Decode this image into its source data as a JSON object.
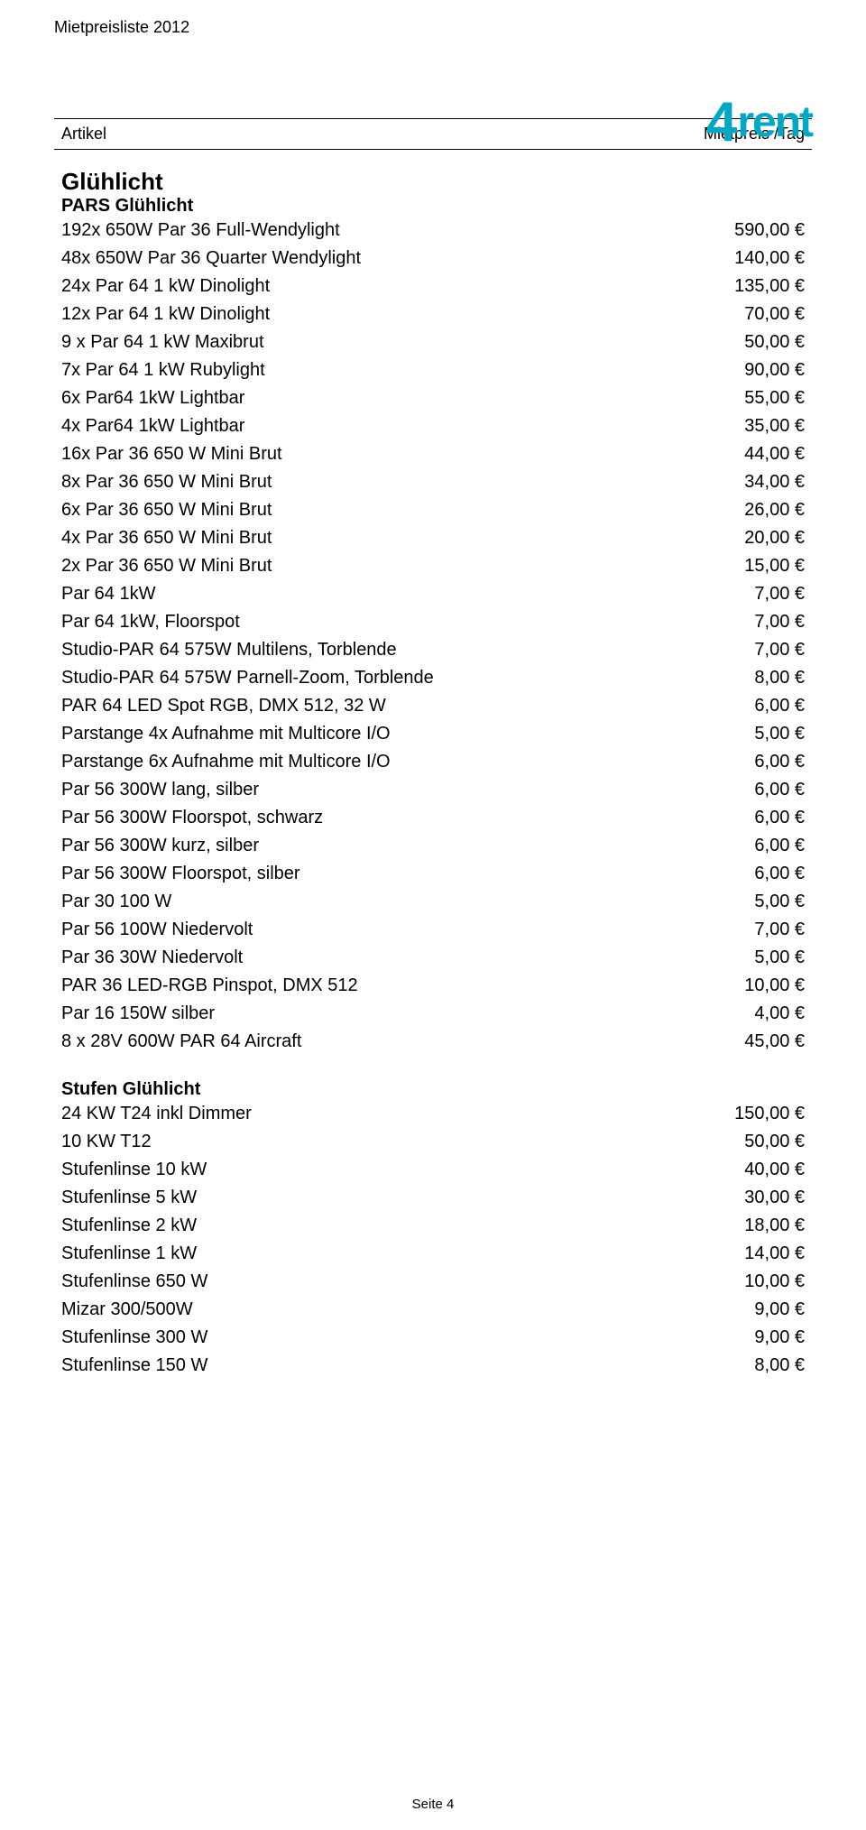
{
  "header": {
    "title": "Mietpreisliste 2012",
    "article_label": "Artikel",
    "price_label": "Mietpreis /Tag"
  },
  "logo": {
    "prefix": "4",
    "suffix": "rent",
    "color": "#00a8c6"
  },
  "currency": "€",
  "section1": {
    "title": "Glühlicht",
    "sub1": {
      "title": "PARS Glühlicht",
      "items": [
        {
          "label": "192x 650W Par 36 Full-Wendylight",
          "price": "590,00"
        },
        {
          "label": "48x 650W Par 36 Quarter Wendylight",
          "price": "140,00"
        },
        {
          "label": "24x Par 64 1 kW Dinolight",
          "price": "135,00"
        },
        {
          "label": "12x Par 64 1 kW Dinolight",
          "price": "70,00"
        },
        {
          "label": "9 x Par 64 1 kW Maxibrut",
          "price": "50,00"
        },
        {
          "label": "7x Par 64 1 kW Rubylight",
          "price": "90,00"
        },
        {
          "label": "6x Par64 1kW Lightbar",
          "price": "55,00"
        },
        {
          "label": "4x Par64 1kW Lightbar",
          "price": "35,00"
        },
        {
          "label": "16x Par 36 650 W Mini Brut",
          "price": "44,00"
        },
        {
          "label": "8x Par 36 650 W Mini Brut",
          "price": "34,00"
        },
        {
          "label": "6x Par 36 650 W Mini Brut",
          "price": "26,00"
        },
        {
          "label": "4x Par 36 650 W Mini Brut",
          "price": "20,00"
        },
        {
          "label": "2x Par 36 650 W Mini Brut",
          "price": "15,00"
        },
        {
          "label": "Par 64 1kW",
          "price": "7,00"
        },
        {
          "label": "Par 64 1kW, Floorspot",
          "price": "7,00"
        },
        {
          "label": "Studio-PAR 64 575W Multilens, Torblende",
          "price": "7,00"
        },
        {
          "label": "Studio-PAR 64 575W Parnell-Zoom, Torblende",
          "price": "8,00"
        },
        {
          "label": "PAR 64 LED Spot RGB, DMX 512, 32 W",
          "price": "6,00"
        },
        {
          "label": "Parstange 4x Aufnahme mit Multicore I/O",
          "price": "5,00"
        },
        {
          "label": "Parstange 6x Aufnahme mit Multicore I/O",
          "price": "6,00"
        },
        {
          "label": "Par 56 300W lang, silber",
          "price": "6,00"
        },
        {
          "label": "Par 56 300W Floorspot, schwarz",
          "price": "6,00"
        },
        {
          "label": "Par 56 300W kurz, silber",
          "price": "6,00"
        },
        {
          "label": "Par 56 300W Floorspot, silber",
          "price": "6,00"
        },
        {
          "label": "Par 30 100 W",
          "price": "5,00"
        },
        {
          "label": "Par 56 100W Niedervolt",
          "price": "7,00"
        },
        {
          "label": "Par 36 30W Niedervolt",
          "price": "5,00"
        },
        {
          "label": "PAR 36 LED-RGB Pinspot, DMX 512",
          "price": "10,00"
        },
        {
          "label": "Par 16 150W silber",
          "price": "4,00"
        },
        {
          "label": "8 x 28V 600W PAR 64 Aircraft",
          "price": "45,00"
        }
      ]
    },
    "sub2": {
      "title": "Stufen Glühlicht",
      "items": [
        {
          "label": "24 KW T24 inkl Dimmer",
          "price": "150,00"
        },
        {
          "label": "10 KW T12",
          "price": "50,00"
        },
        {
          "label": "Stufenlinse 10 kW",
          "price": "40,00"
        },
        {
          "label": "Stufenlinse 5 kW",
          "price": "30,00"
        },
        {
          "label": "Stufenlinse 2 kW",
          "price": "18,00"
        },
        {
          "label": "Stufenlinse 1 kW",
          "price": "14,00"
        },
        {
          "label": "Stufenlinse 650 W",
          "price": "10,00"
        },
        {
          "label": "Mizar 300/500W",
          "price": "9,00"
        },
        {
          "label": "Stufenlinse 300 W",
          "price": "9,00"
        },
        {
          "label": "Stufenlinse 150 W",
          "price": "8,00"
        }
      ]
    }
  },
  "footer": {
    "text": "Seite 4"
  }
}
